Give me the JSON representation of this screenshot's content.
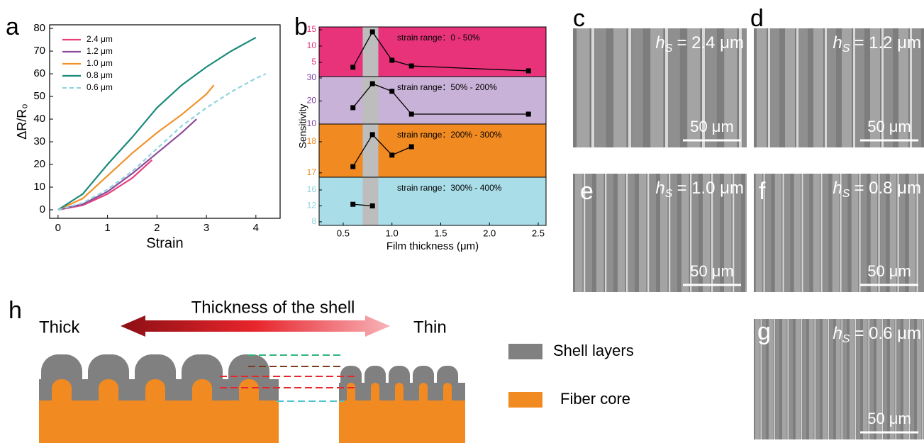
{
  "chart_data": [
    {
      "type": "line",
      "panel": "a",
      "x_label": "Strain",
      "y_label": "ΔR/R₀",
      "xlim": [
        -0.17,
        4.49
      ],
      "ylim": [
        -3.75,
        81.6
      ],
      "xticks": [
        0,
        1,
        2,
        3,
        4
      ],
      "yticks": [
        0,
        10,
        20,
        30,
        40,
        50,
        60,
        70,
        80
      ],
      "series": [
        {
          "name": "2.4 μm",
          "color": "#e8407a",
          "dashed": false,
          "x": [
            0,
            0.5,
            1,
            1.5,
            1.9
          ],
          "values": [
            0,
            2,
            7,
            14,
            22
          ]
        },
        {
          "name": "1.2 μm",
          "color": "#8b4a9c",
          "dashed": false,
          "x": [
            0,
            0.5,
            1,
            1.5,
            2,
            2.5,
            2.8
          ],
          "values": [
            0,
            2.5,
            8,
            16,
            25,
            34,
            40
          ]
        },
        {
          "name": "1.0 μm",
          "color": "#f0922a",
          "dashed": false,
          "x": [
            0,
            0.5,
            1,
            1.5,
            2,
            2.5,
            3,
            3.15
          ],
          "values": [
            0,
            5,
            15,
            25,
            34,
            42,
            51,
            55
          ]
        },
        {
          "name": "0.8 μm",
          "color": "#1b8a7a",
          "dashed": false,
          "x": [
            0,
            0.5,
            1,
            1.5,
            2,
            2.5,
            3,
            3.5,
            4
          ],
          "values": [
            0,
            7,
            20,
            32,
            45,
            55,
            63,
            70,
            76
          ]
        },
        {
          "name": "0.6 μm",
          "color": "#8fd3e0",
          "dashed": true,
          "x": [
            0,
            0.5,
            1,
            1.5,
            2,
            2.5,
            3,
            3.5,
            4,
            4.2
          ],
          "values": [
            0,
            3,
            9,
            17,
            27,
            37,
            45,
            52,
            58,
            60
          ]
        }
      ]
    },
    {
      "type": "stacked-panels",
      "panel": "b",
      "x_label": "Film thickness (μm)",
      "y_label": "Sensitivity",
      "xlim": [
        0.253,
        2.58
      ],
      "xticks": [
        0.5,
        {
          "value": 1,
          "label": "1.0"
        },
        1.5,
        {
          "value": 2,
          "label": "2.0"
        },
        2.5
      ],
      "highlight": [
        0.7,
        0.86
      ],
      "subplots": [
        {
          "annotation": "strain range：0 - 50%",
          "background": "#e8337b",
          "tick_color": "#e8337b",
          "ylim": [
            0.65,
            15.87
          ],
          "yticks": [
            5,
            10,
            15
          ],
          "x": [
            0.6,
            0.8,
            1.0,
            1.2,
            2.4
          ],
          "values": [
            3.5,
            14.35,
            5.65,
            3.9,
            2.4
          ]
        },
        {
          "annotation": "strain range：50% - 200%",
          "background": "#c9b2d8",
          "tick_color": "#7a3fa0",
          "ylim": [
            10,
            30.6
          ],
          "yticks": [
            10,
            20,
            30
          ],
          "x": [
            0.6,
            0.8,
            1.0,
            1.2,
            2.4
          ],
          "values": [
            17.1,
            27.5,
            24.2,
            14.3,
            14.3
          ]
        },
        {
          "annotation": "strain range：200% - 300%",
          "background": "#f28a22",
          "tick_color": "#f28a22",
          "ylim": [
            16.86,
            18.57
          ],
          "yticks": [
            17,
            18
          ],
          "x": [
            0.6,
            0.8,
            1.0,
            1.2
          ],
          "values": [
            17.2,
            18.23,
            17.57,
            17.84
          ]
        },
        {
          "annotation": "strain range：300% - 400%",
          "background": "#a9dde8",
          "tick_color": "#8fd3e0",
          "ylim": [
            7.1,
            19.2
          ],
          "yticks": [
            8,
            12,
            16
          ],
          "x": [
            0.6,
            0.8
          ],
          "values": [
            12.4,
            12.0
          ]
        }
      ]
    }
  ],
  "sem_images": [
    {
      "panel": "c",
      "symbol": "h",
      "subscript": "S",
      "text": "= 2.4 μm",
      "scale_bar": "50 μm"
    },
    {
      "panel": "d",
      "symbol": "h",
      "subscript": "S",
      "text": "= 1.2 μm",
      "scale_bar": "50 μm"
    },
    {
      "panel": "e",
      "symbol": "h",
      "subscript": "S",
      "text": "= 1.0 μm",
      "scale_bar": "50 μm"
    },
    {
      "panel": "f",
      "symbol": "h",
      "subscript": "S",
      "text": "= 0.8 μm",
      "scale_bar": "50 μm"
    },
    {
      "panel": "g",
      "symbol": "h",
      "subscript": "S",
      "text": "= 0.6 μm",
      "scale_bar": "50 μm"
    }
  ],
  "diagram": {
    "panel": "h",
    "arrow_label": "Thickness of the shell",
    "left": "Thick",
    "right": "Thin",
    "legend": [
      "Shell layers",
      "Fiber core"
    ]
  }
}
